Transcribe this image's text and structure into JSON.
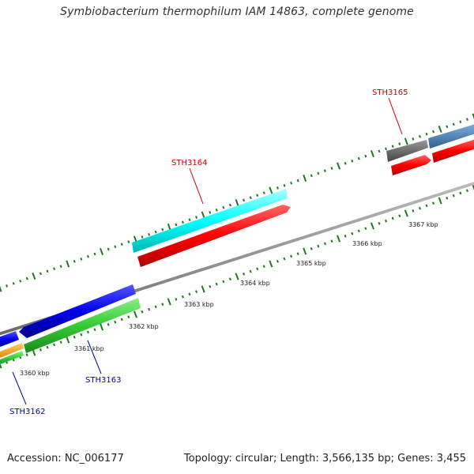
{
  "title": "Symbiobacterium thermophilum IAM 14863, complete genome",
  "footer": {
    "accession": "Accession: NC_006177",
    "summary": "Topology: circular; Length: 3,566,135 bp; Genes: 3,455"
  },
  "scale": {
    "labels": [
      "3360 kbp",
      "3361 kbp",
      "3362 kbp",
      "3363 kbp",
      "3364 kbp",
      "3365 kbp",
      "3366 kbp",
      "3367 kbp"
    ]
  },
  "genes": {
    "sth3162": {
      "name": "STH3162",
      "color": "#0000aa"
    },
    "sth3163": {
      "name": "STH3163",
      "color": "#0000aa"
    },
    "sth3164": {
      "name": "STH3164",
      "color": "#cc0000"
    },
    "sth3165": {
      "name": "STH3165",
      "color": "#cc0000"
    }
  },
  "colors": {
    "backbone": "#888888",
    "tick": "#1a7a1a",
    "cyan": "#00ffff",
    "red": "#ff0000",
    "blue": "#0000ee",
    "green": "#33cc33",
    "orange": "#ff9900",
    "gray_gene": "#666666",
    "steel_blue": "#4a7fb5"
  }
}
